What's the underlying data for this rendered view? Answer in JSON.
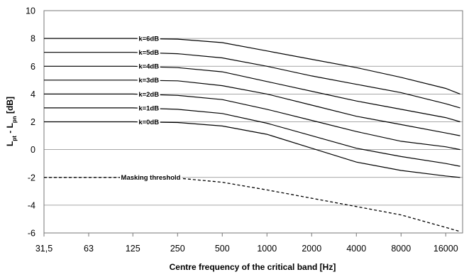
{
  "chart_data": {
    "type": "line",
    "xlabel": "Centre frequency of the critical band [Hz]",
    "ylabel_main": "L",
    "ylabel_sub1": "pt",
    "ylabel_mid": " - L",
    "ylabel_sub2": "pn",
    "ylabel_unit": " [dB]",
    "x_scale": "log2",
    "x_ticks": [
      31.5,
      63,
      125,
      250,
      500,
      1000,
      2000,
      4000,
      8000,
      16000
    ],
    "x_tick_labels": [
      "31,5",
      "63",
      "125",
      "250",
      "500",
      "1000",
      "2000",
      "4000",
      "8000",
      "16000"
    ],
    "xlim": [
      31.5,
      20000
    ],
    "ylim": [
      -6,
      10
    ],
    "y_ticks": [
      -6,
      -4,
      -2,
      0,
      2,
      4,
      6,
      8,
      10
    ],
    "y_tick_labels": [
      "-6",
      "-4",
      "-2",
      "0",
      "2",
      "4",
      "6",
      "8",
      "10"
    ],
    "grid": "horizontal",
    "series": [
      {
        "name": "k=6dB",
        "style": "solid",
        "x": [
          31.5,
          63,
          125,
          250,
          500,
          1000,
          2000,
          4000,
          8000,
          16000,
          20000
        ],
        "y": [
          8,
          8,
          8,
          7.95,
          7.7,
          7.1,
          6.5,
          5.9,
          5.2,
          4.4,
          4.0
        ]
      },
      {
        "name": "k=5dB",
        "style": "solid",
        "x": [
          31.5,
          63,
          125,
          250,
          500,
          1000,
          2000,
          4000,
          8000,
          16000,
          20000
        ],
        "y": [
          7,
          7,
          7,
          6.9,
          6.6,
          6.0,
          5.3,
          4.7,
          4.1,
          3.3,
          3.0
        ]
      },
      {
        "name": "k=4dB",
        "style": "solid",
        "x": [
          31.5,
          63,
          125,
          250,
          500,
          1000,
          2000,
          4000,
          8000,
          16000,
          20000
        ],
        "y": [
          6,
          6,
          6,
          5.9,
          5.6,
          4.9,
          4.2,
          3.5,
          2.9,
          2.3,
          2.0
        ]
      },
      {
        "name": "k=3dB",
        "style": "solid",
        "x": [
          31.5,
          63,
          125,
          250,
          500,
          1000,
          2000,
          4000,
          8000,
          16000,
          20000
        ],
        "y": [
          5,
          5,
          5,
          4.95,
          4.6,
          4.0,
          3.2,
          2.4,
          1.8,
          1.2,
          1.0
        ]
      },
      {
        "name": "k=2dB",
        "style": "solid",
        "x": [
          31.5,
          63,
          125,
          250,
          500,
          1000,
          2000,
          4000,
          8000,
          16000,
          20000
        ],
        "y": [
          4,
          4,
          4,
          3.9,
          3.6,
          2.9,
          2.1,
          1.3,
          0.6,
          0.2,
          0.0
        ]
      },
      {
        "name": "k=1dB",
        "style": "solid",
        "x": [
          31.5,
          63,
          125,
          250,
          500,
          1000,
          2000,
          4000,
          8000,
          16000,
          20000
        ],
        "y": [
          3,
          3,
          3,
          2.9,
          2.6,
          1.9,
          1.0,
          0.1,
          -0.5,
          -1.0,
          -1.2
        ]
      },
      {
        "name": "k=0dB",
        "style": "solid",
        "x": [
          31.5,
          63,
          125,
          250,
          500,
          1000,
          2000,
          4000,
          8000,
          16000,
          20000
        ],
        "y": [
          2,
          2,
          2,
          1.95,
          1.7,
          1.1,
          0.1,
          -0.9,
          -1.5,
          -1.9,
          -2.0
        ]
      },
      {
        "name": "Masking threshold",
        "style": "dashed",
        "x": [
          31.5,
          63,
          125,
          250,
          500,
          1000,
          2000,
          4000,
          8000,
          16000,
          20000
        ],
        "y": [
          -2,
          -2,
          -2,
          -2.05,
          -2.35,
          -2.9,
          -3.5,
          -4.1,
          -4.7,
          -5.6,
          -5.9
        ]
      }
    ],
    "label_positions": [
      {
        "series": "k=6dB",
        "x": 160,
        "y": 8
      },
      {
        "series": "k=5dB",
        "x": 160,
        "y": 7
      },
      {
        "series": "k=4dB",
        "x": 160,
        "y": 6
      },
      {
        "series": "k=3dB",
        "x": 160,
        "y": 5
      },
      {
        "series": "k=2dB",
        "x": 160,
        "y": 4
      },
      {
        "series": "k=1dB",
        "x": 160,
        "y": 3
      },
      {
        "series": "k=0dB",
        "x": 160,
        "y": 2
      },
      {
        "series": "Masking threshold",
        "x": 165,
        "y": -2
      }
    ]
  }
}
